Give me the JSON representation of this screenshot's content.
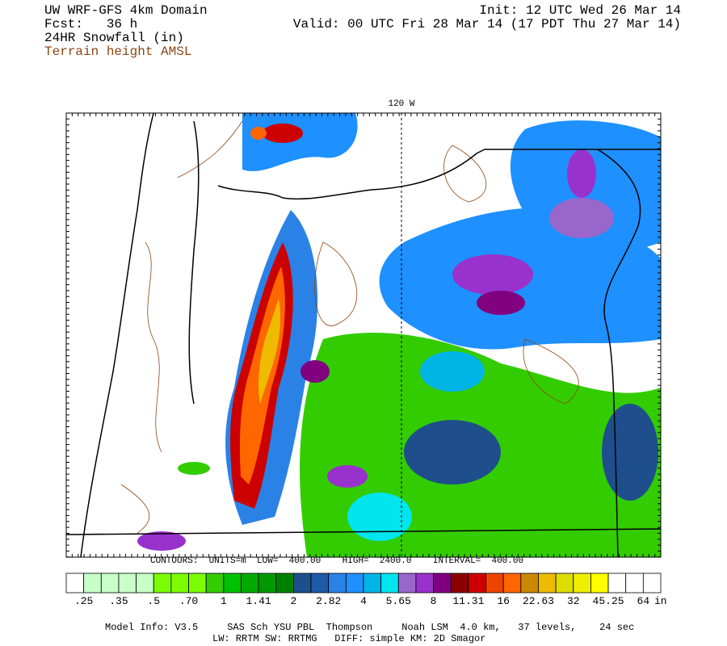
{
  "header": {
    "title": "UW WRF-GFS 4km Domain",
    "forecast": "Fcst:   36 h",
    "field": "24HR Snowfall (in)",
    "contours_field": "Terrain height AMSL",
    "init": "Init: 12 UTC Wed 26 Mar 14",
    "valid": "Valid: 00 UTC Fri 28 Mar 14 (17 PDT Thu 27 Mar 14)"
  },
  "map": {
    "meridian_label": "120 W",
    "contour_info": "CONTOURS:  UNITS=m  LOW=  400.00    HIGH=  2400.0    INTERVAL=  400.00"
  },
  "colorbar": {
    "colors": [
      "#ffffff",
      "#c8ffc8",
      "#c8ffc8",
      "#c8ffc8",
      "#c8ffc8",
      "#7cfc00",
      "#7cfc00",
      "#7cfc00",
      "#33cc00",
      "#00c000",
      "#00aa00",
      "#009900",
      "#008000",
      "#1e4f8c",
      "#1f5aa8",
      "#2b82e6",
      "#1e90ff",
      "#00b4e6",
      "#00e5ee",
      "#9966cc",
      "#9932cc",
      "#800080",
      "#8b0000",
      "#cc0000",
      "#ee4400",
      "#ff6600",
      "#cc8800",
      "#eebb00",
      "#dddd00",
      "#eeee00",
      "#ffff00",
      "#ffffff",
      "#ffffff",
      "#ffffff"
    ],
    "labels": [
      ".25",
      ".35",
      ".5",
      ".70",
      "1",
      "1.41",
      "2",
      "2.82",
      "4",
      "5.65",
      "8",
      "11.31",
      "16",
      "22.63",
      "32",
      "45.25",
      "64"
    ],
    "unit": "in"
  },
  "footer": {
    "line1": "Model Info: V3.5     SAS Sch YSU PBL  Thompson     Noah LSM  4.0 km,   37 levels,    24 sec",
    "line2": "LW: RRTM SW: RRTMG   DIFF: simple KM: 2D Smagor"
  }
}
